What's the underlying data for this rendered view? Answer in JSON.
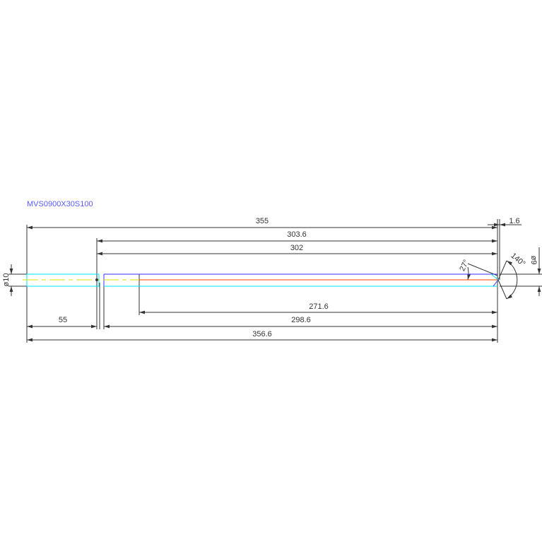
{
  "title": "MVS0900X30S100",
  "dimensions": {
    "overall_355": "355",
    "d_303_6": "303.6",
    "d_302": "302",
    "d_271_6": "271.6",
    "d_55": "55",
    "d_298_6": "298.6",
    "d_356_6": "356.6",
    "d_1_6": "1.6",
    "dia_10": "ø10",
    "dia_9": "ø9",
    "angle_27": "27°",
    "angle_140": "140°"
  },
  "colors": {
    "shank": "#00e5ff",
    "flute_top": "#3030ff",
    "centerline": "#ff4000",
    "axis": "#e0e000",
    "title": "#5a5aff"
  }
}
